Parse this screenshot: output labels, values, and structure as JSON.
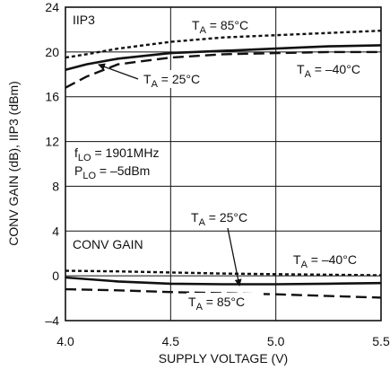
{
  "chart_data": {
    "type": "line",
    "xlabel": "SUPPLY VOLTAGE (V)",
    "ylabel": "CONV GAIN (dB), IIP3 (dBm)",
    "xlim": [
      4.0,
      5.5
    ],
    "ylim": [
      -4,
      24
    ],
    "xticks": [
      "4.0",
      "4.5",
      "5.0",
      "5.5"
    ],
    "yticks": [
      "–4",
      "0",
      "4",
      "8",
      "12",
      "16",
      "20",
      "24"
    ],
    "grid": true,
    "groups": {
      "iip3": "IIP3",
      "gain": "CONV GAIN"
    },
    "conditions": [
      {
        "key": "f",
        "sub": "LO",
        "value": " = 1901MHz"
      },
      {
        "key": "P",
        "sub": "LO",
        "value": " = –5dBm"
      }
    ],
    "series": [
      {
        "group": "iip3",
        "temperature": "T_A = 85°C",
        "style": "dotted",
        "x": [
          4.0,
          4.1,
          4.25,
          4.5,
          4.75,
          5.0,
          5.25,
          5.5
        ],
        "y": [
          19.5,
          19.8,
          20.3,
          20.9,
          21.3,
          21.5,
          21.7,
          21.9
        ]
      },
      {
        "group": "iip3",
        "temperature": "T_A = 25°C",
        "style": "solid",
        "x": [
          4.0,
          4.1,
          4.25,
          4.5,
          4.75,
          5.0,
          5.25,
          5.5
        ],
        "y": [
          18.4,
          18.9,
          19.4,
          19.9,
          20.1,
          20.3,
          20.5,
          20.6
        ]
      },
      {
        "group": "iip3",
        "temperature": "T_A = –40°C",
        "style": "dashed",
        "x": [
          4.0,
          4.1,
          4.25,
          4.5,
          4.75,
          5.0,
          5.25,
          5.5
        ],
        "y": [
          16.8,
          17.8,
          18.9,
          19.5,
          19.8,
          19.9,
          20.0,
          20.0
        ]
      },
      {
        "group": "gain",
        "temperature": "T_A = –40°C",
        "style": "dotted",
        "x": [
          4.0,
          4.25,
          4.5,
          4.75,
          5.0,
          5.25,
          5.5
        ],
        "y": [
          0.45,
          0.4,
          0.3,
          0.2,
          0.15,
          0.1,
          0.05
        ]
      },
      {
        "group": "gain",
        "temperature": "T_A = 25°C",
        "style": "solid",
        "x": [
          4.0,
          4.25,
          4.5,
          4.75,
          5.0,
          5.25,
          5.5
        ],
        "y": [
          -0.15,
          -0.5,
          -0.7,
          -0.75,
          -0.75,
          -0.7,
          -0.65
        ]
      },
      {
        "group": "gain",
        "temperature": "T_A = 85°C",
        "style": "dashed",
        "x": [
          4.0,
          4.25,
          4.5,
          4.75,
          5.0,
          5.25,
          5.5
        ],
        "y": [
          -1.2,
          -1.3,
          -1.45,
          -1.55,
          -1.65,
          -1.8,
          -1.95
        ]
      }
    ],
    "annotations": [
      {
        "base": "T",
        "sub": "A",
        "value": " = 85°C"
      },
      {
        "base": "T",
        "sub": "A",
        "value": " = 25°C"
      },
      {
        "base": "T",
        "sub": "A",
        "value": " = –40°C"
      },
      {
        "base": "T",
        "sub": "A",
        "value": " = 25°C"
      },
      {
        "base": "T",
        "sub": "A",
        "value": " = –40°C"
      },
      {
        "base": "T",
        "sub": "A",
        "value": " = 85°C"
      }
    ]
  }
}
